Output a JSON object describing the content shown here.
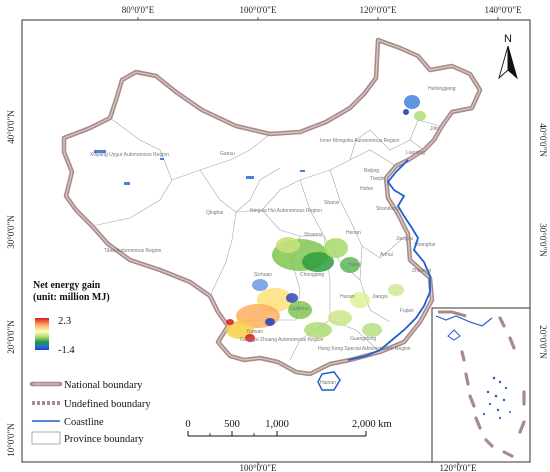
{
  "coordinates": {
    "top": [
      "80°0'0\"E",
      "100°0'0\"E",
      "120°0'0\"E",
      "140°0'0\"E"
    ],
    "bottom": [
      "100°0'0\"E",
      "120°0'0\"E"
    ],
    "left": [
      "40°0'0\"N",
      "30°0'0\"N",
      "20°0'0\"N",
      "10°0'0\"N"
    ],
    "right": [
      "40°0'0\"N",
      "30°0'0\"N",
      "20°0'0\"N"
    ]
  },
  "north_label": "N",
  "province_labels": {
    "xinjiang": "Xinjiang Uygur Autonomous Region",
    "tibet": "Tibet Autonomous Region",
    "qinghai": "Qinghai",
    "gansu": "Gansu",
    "inner_mongolia": "Inner Mongolia Autonomous Region",
    "heilongjiang": "Heilongjiang",
    "jilin": "Jilin",
    "liaoning": "Liaoning",
    "beijing": "Beijing",
    "tianjin": "Tianjin",
    "hebei": "Hebei",
    "ningxia": "Ningxia Hui Autonomous Region",
    "shanxi": "Shanxi",
    "shandong": "Shandong",
    "shaanxi": "Shaanxi",
    "henan": "Henan",
    "jiangsu": "Jiangsu",
    "shanghai": "Shanghai",
    "anhui": "Anhui",
    "hubei": "Hubei",
    "chongqing": "Chongqing",
    "sichuan": "Sichuan",
    "zhejiang": "Zhejiang",
    "hunan": "Hunan",
    "jiangxi": "Jiangxi",
    "guizhou": "Guizhou",
    "fujian": "Fujian",
    "yunnan": "Yunnan",
    "guangxi": "Guangxi Zhuang Autonomous Region",
    "guangdong": "Guangdong",
    "hongkong": "Hong Kong Special Administrative Region",
    "hainan": "Hainan"
  },
  "colorbar": {
    "title_line1": "Net energy gain",
    "title_line2": "(unit: million MJ)",
    "max_label": "2.3",
    "min_label": "-1.4",
    "colors": [
      "#d7191c",
      "#fdae61",
      "#ffffbf",
      "#a6d96a",
      "#1a9641",
      "#2b6fd6",
      "#1f3fbf"
    ]
  },
  "legend": {
    "national": "National boundary",
    "undefined": "Undefined boundary",
    "coastline": "Coastline",
    "province": "Province boundary"
  },
  "scalebar": {
    "labels": [
      "0",
      "500",
      "1,000",
      "2,000 km"
    ]
  },
  "colors": {
    "national_fill": "#a88a88",
    "national_inner": "#c9b5b3",
    "coastline": "#1f5fd0",
    "province": "#9b9b9b"
  }
}
